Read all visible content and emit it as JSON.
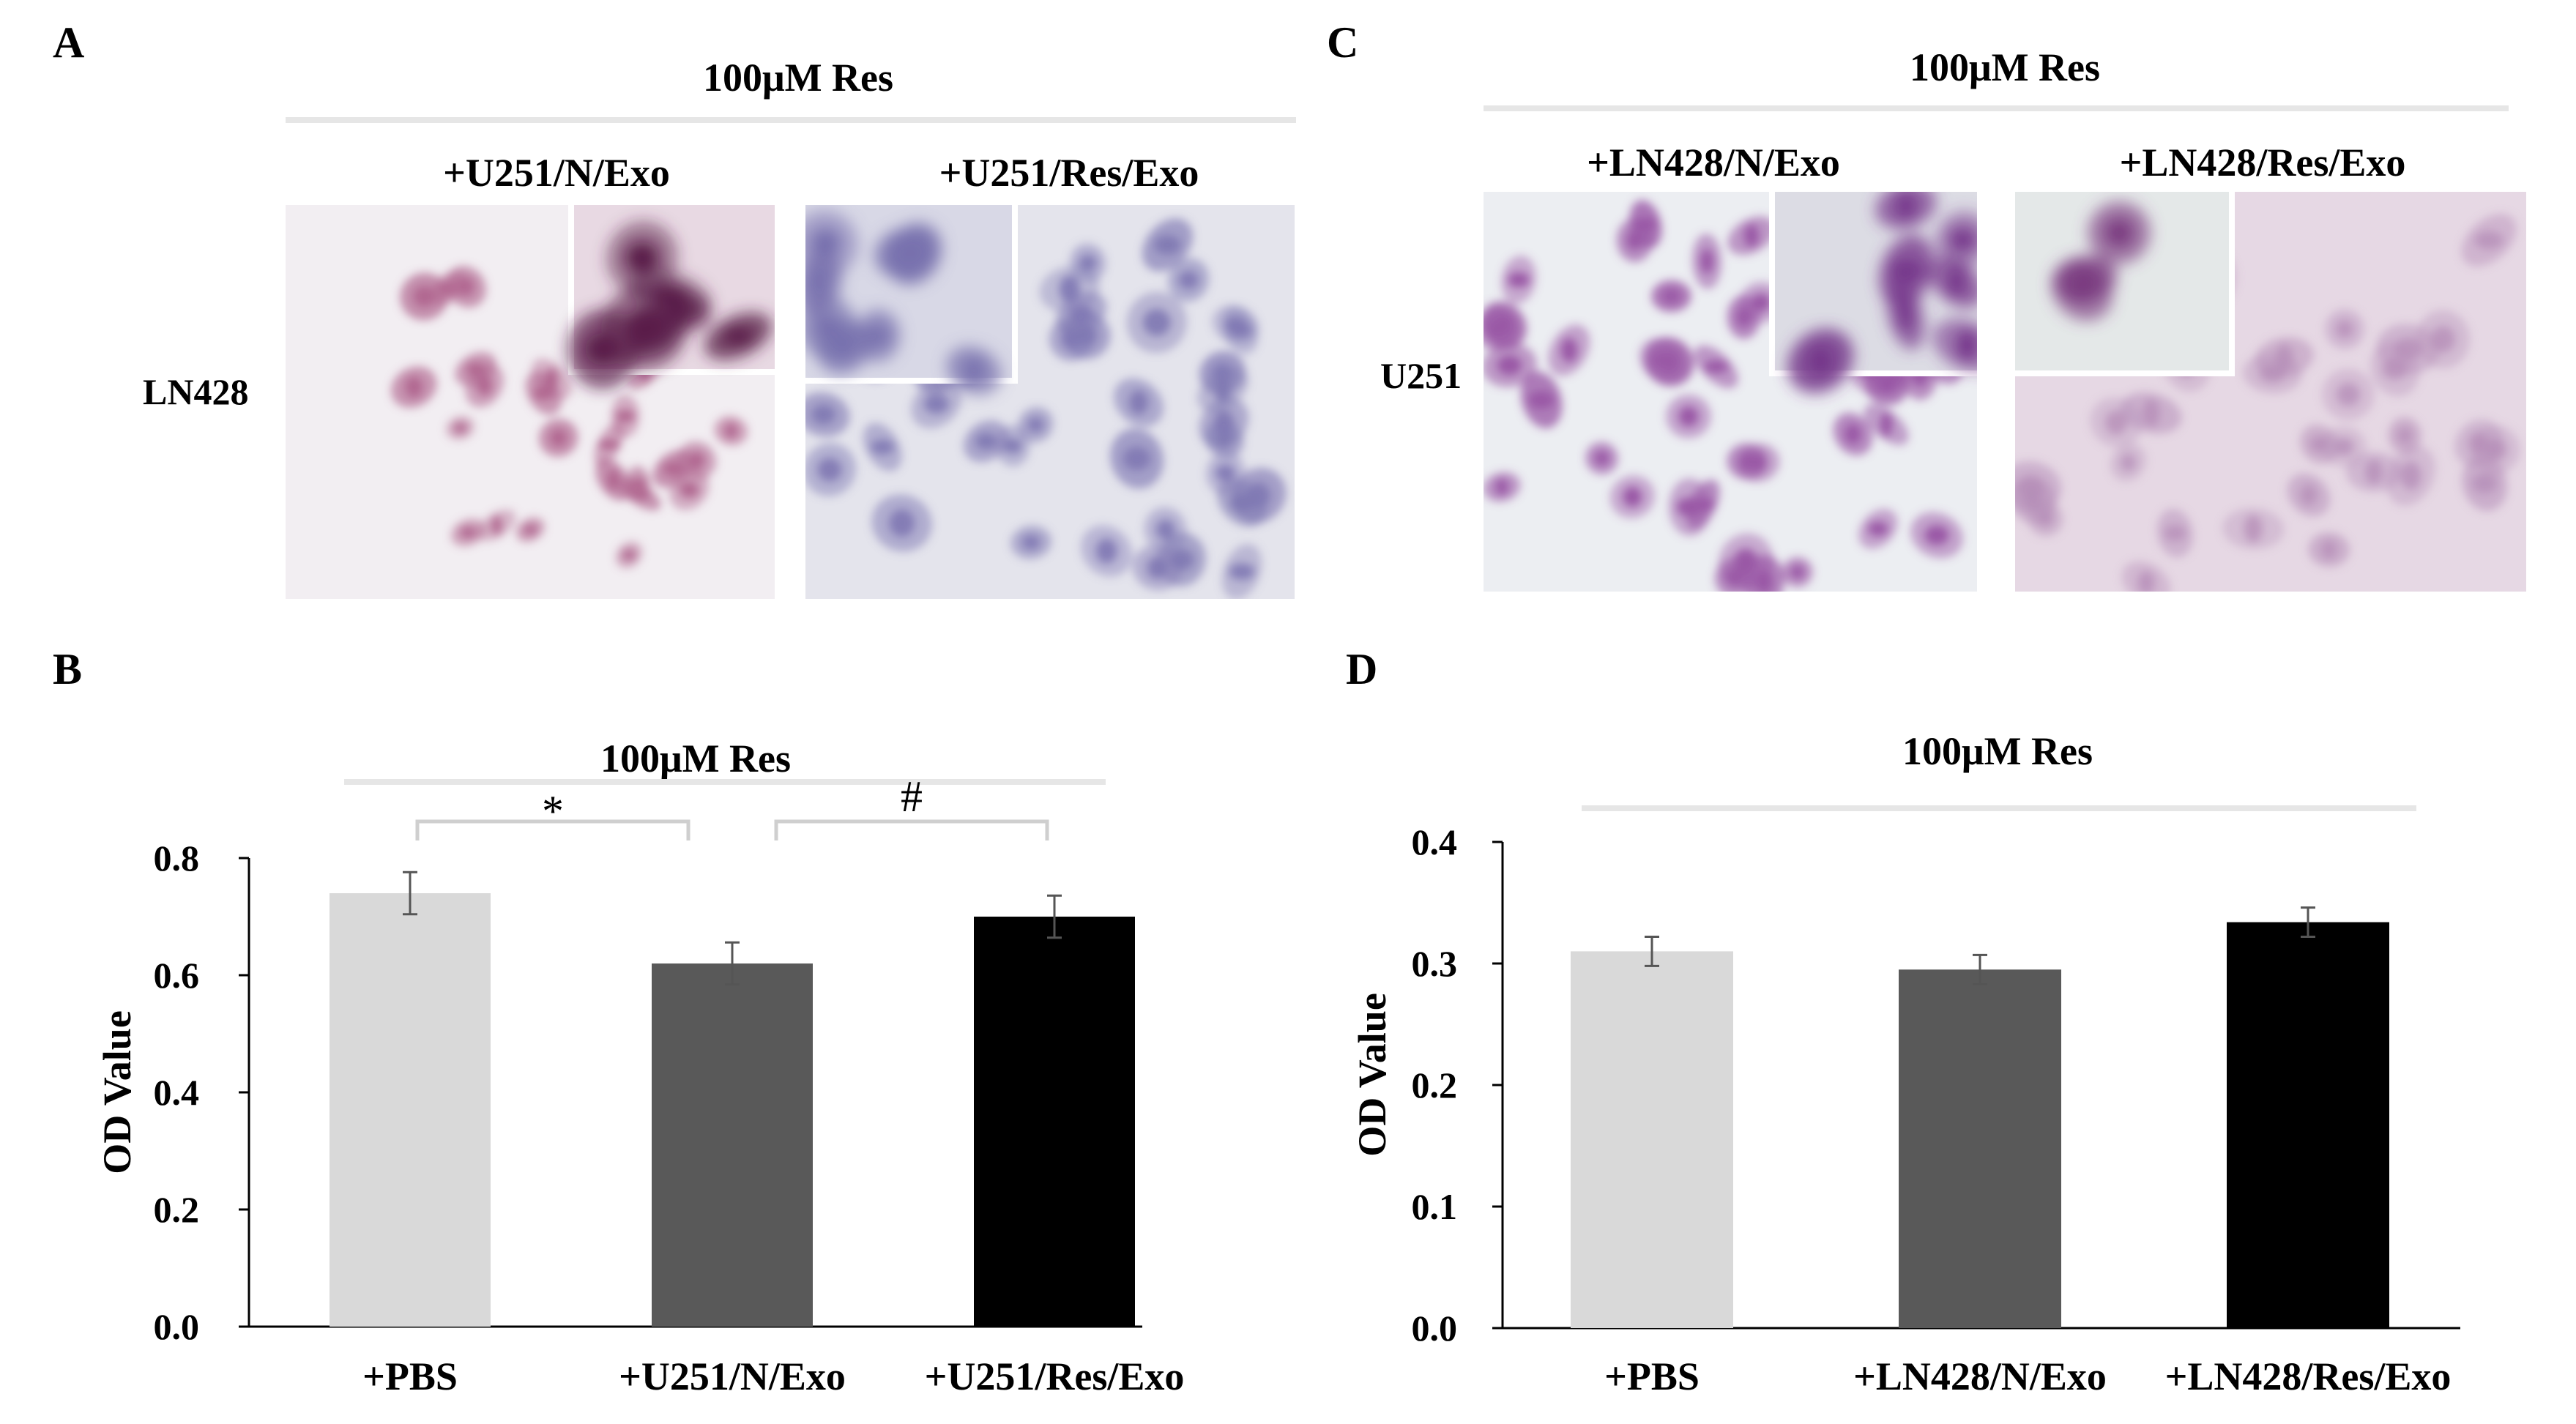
{
  "panels": {
    "A": {
      "letter": "A",
      "header": "100μM Res",
      "row_label": "LN428",
      "image_labels": [
        "+U251/N/Exo",
        "+U251/Res/Exo"
      ],
      "stain_colors": [
        "#b0668f",
        "#7f78b3"
      ]
    },
    "C": {
      "letter": "C",
      "header": "100μM Res",
      "row_label": "U251",
      "image_labels": [
        "+LN428/N/Exo",
        "+LN428/Res/Exo"
      ],
      "stain_colors": [
        "#9a58a6",
        "#b48cb7"
      ]
    },
    "B": {
      "letter": "B"
    },
    "D": {
      "letter": "D"
    }
  },
  "chart_data": [
    {
      "panel": "B",
      "type": "bar",
      "header": "100μM Res",
      "categories": [
        "+PBS",
        "+U251/N/Exo",
        "+U251/Res/Exo"
      ],
      "values": [
        0.74,
        0.62,
        0.7
      ],
      "errors": [
        0.036,
        0.036,
        0.036
      ],
      "colors": [
        "#d9d9d9",
        "#595959",
        "#000000"
      ],
      "ylabel": "OD Value",
      "ylim": [
        0,
        0.8
      ],
      "yticks": [
        "0.0",
        "0.2",
        "0.4",
        "0.6",
        "0.8"
      ],
      "significance": [
        {
          "from": 0,
          "to": 1,
          "mark": "*"
        },
        {
          "from": 1,
          "to": 2,
          "mark": "#"
        }
      ]
    },
    {
      "panel": "D",
      "type": "bar",
      "header": "100μM Res",
      "categories": [
        "+PBS",
        "+LN428/N/Exo",
        "+LN428/Res/Exo"
      ],
      "values": [
        0.31,
        0.295,
        0.334
      ],
      "errors": [
        0.012,
        0.012,
        0.012
      ],
      "colors": [
        "#d9d9d9",
        "#595959",
        "#000000"
      ],
      "ylabel": "OD Value",
      "ylim": [
        0,
        0.4
      ],
      "yticks": [
        "0.0",
        "0.1",
        "0.2",
        "0.3",
        "0.4"
      ],
      "significance": []
    }
  ]
}
